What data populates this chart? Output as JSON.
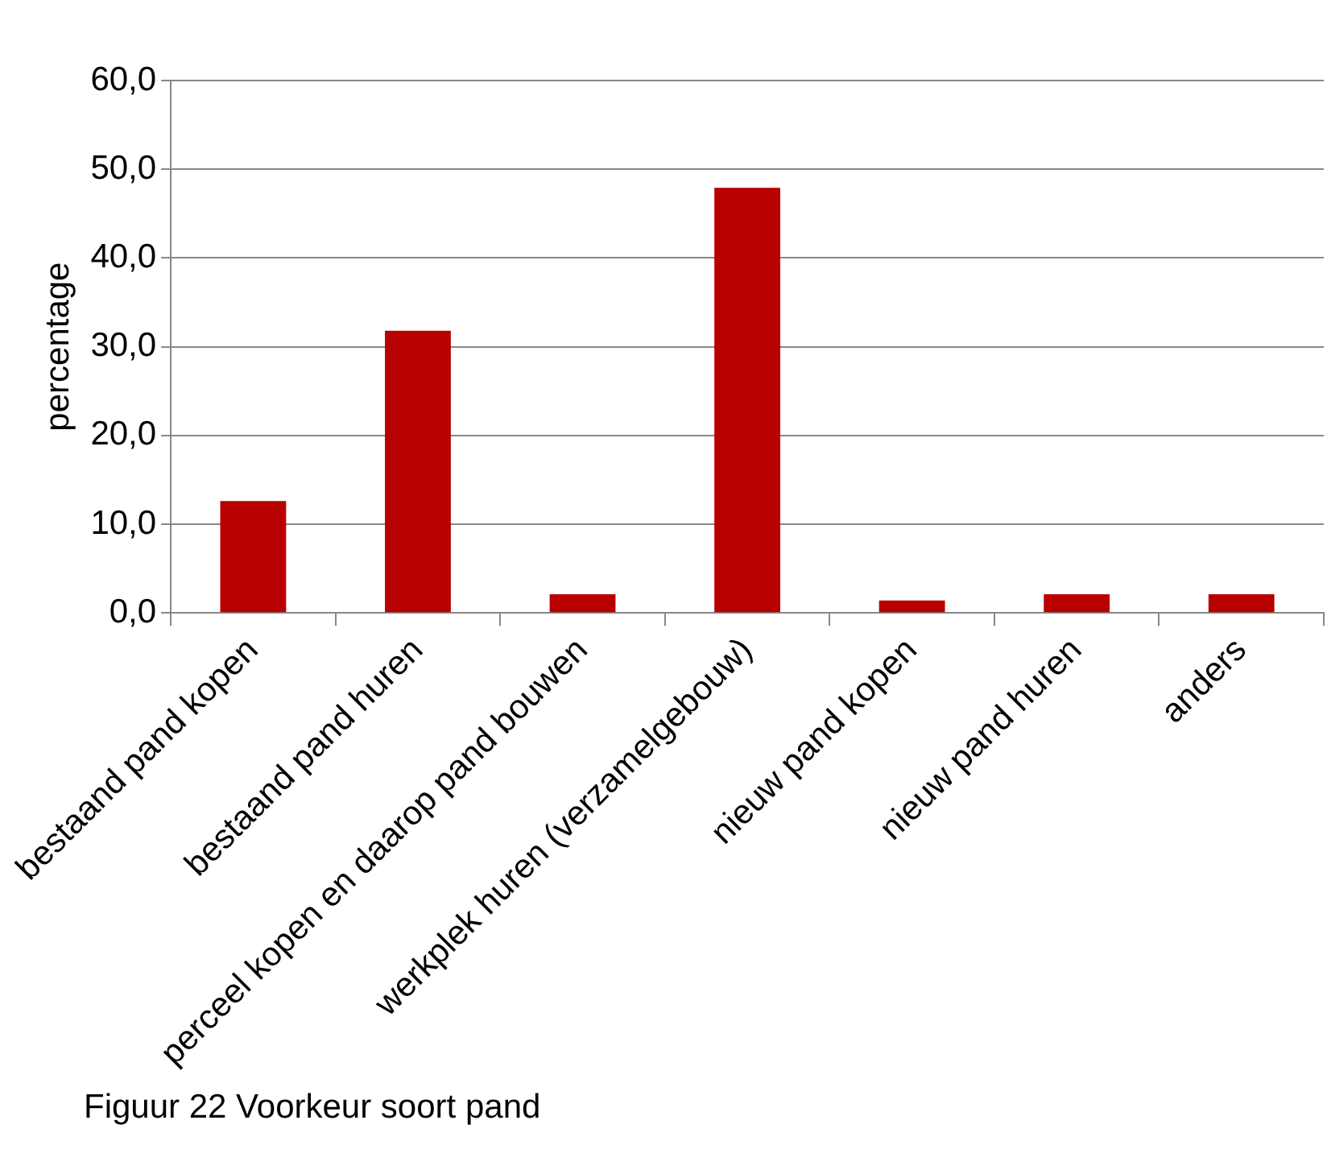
{
  "chart_data": {
    "type": "bar",
    "ylabel": "percentage",
    "categories": [
      "bestaand pand kopen",
      "bestaand pand huren",
      "perceel kopen en daarop pand bouwen",
      "werkplek huren (verzamelgebouw)",
      "nieuw pand kopen",
      "nieuw pand huren",
      "anders"
    ],
    "values": [
      12.6,
      31.8,
      2.1,
      47.9,
      1.4,
      2.1,
      2.1
    ],
    "color": "#b80000",
    "ylim": [
      0,
      60
    ],
    "yticks": [
      {
        "value": 0,
        "label": "0,0"
      },
      {
        "value": 10,
        "label": "10,0"
      },
      {
        "value": 20,
        "label": "20,0"
      },
      {
        "value": 30,
        "label": "30,0"
      },
      {
        "value": 40,
        "label": "40,0"
      },
      {
        "value": 50,
        "label": "50,0"
      },
      {
        "value": 60,
        "label": "60,0"
      }
    ],
    "grid": "y",
    "legend": false,
    "annotations": [
      "Figuur 22 Voorkeur soort pand"
    ]
  }
}
